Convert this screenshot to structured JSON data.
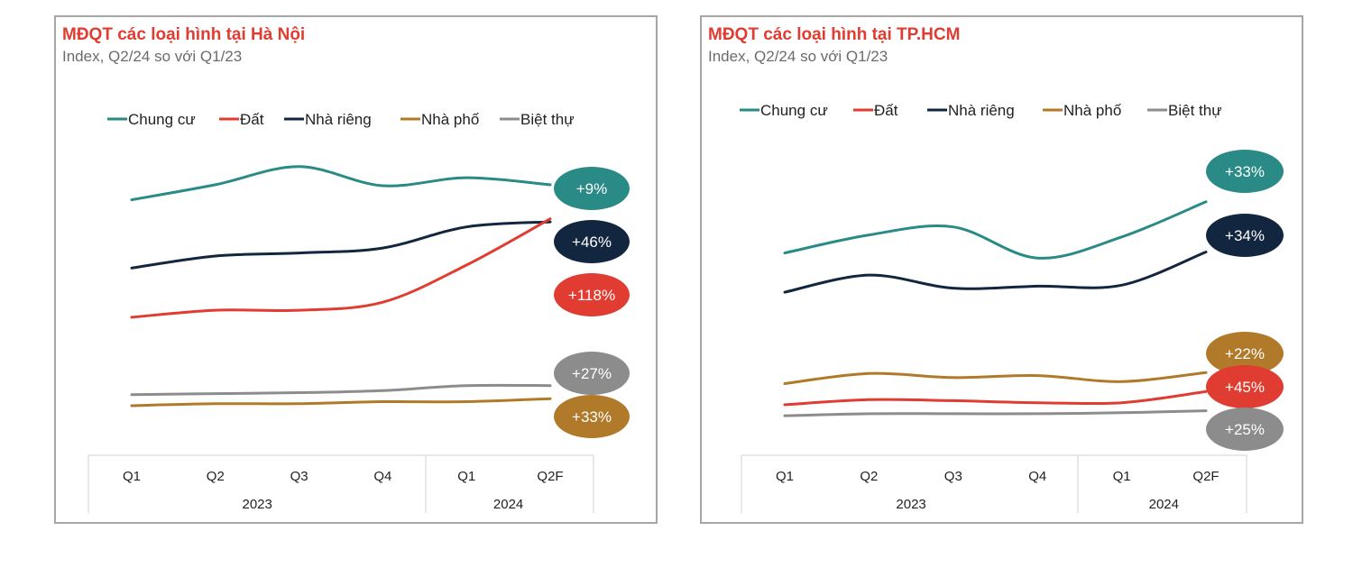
{
  "charts": [
    {
      "title": "MĐQT các loại hình tại Hà Nội",
      "subtitle": "Index, Q2/24 so với Q1/23"
    },
    {
      "title": "MĐQT các loại hình tại TP.HCM",
      "subtitle": "Index, Q2/24 so với Q1/23"
    }
  ],
  "colors": {
    "Chung cư": "#2a8a86",
    "Đất": "#e03c31",
    "Nhà riêng": "#13263f",
    "Nhà phố": "#b07a2a",
    "Biệt thự": "#8c8c8c"
  },
  "chart_data": [
    {
      "type": "line",
      "title": "MĐQT các loại hình tại Hà Nội",
      "subtitle": "Index, Q2/24 so với Q1/23",
      "categories": [
        "Q1",
        "Q2",
        "Q3",
        "Q4",
        "Q1",
        "Q2F"
      ],
      "category_groups": [
        {
          "label": "2023",
          "span": 4
        },
        {
          "label": "2024",
          "span": 2
        }
      ],
      "legend": [
        "Chung cư",
        "Đất",
        "Nhà riêng",
        "Nhà phố",
        "Biệt thự"
      ],
      "ylim": [
        100,
        380
      ],
      "series": [
        {
          "name": "Chung cư",
          "values": [
            340,
            355,
            373,
            354,
            362,
            355
          ],
          "label": "+9%"
        },
        {
          "name": "Nhà riêng",
          "values": [
            272,
            284,
            287,
            292,
            313,
            318
          ],
          "label": "+46%"
        },
        {
          "name": "Đất",
          "values": [
            223,
            230,
            230,
            238,
            275,
            321
          ],
          "label": "+118%"
        },
        {
          "name": "Biệt thự",
          "values": [
            146,
            147,
            148,
            150,
            155,
            155
          ],
          "label": "+27%"
        },
        {
          "name": "Nhà phố",
          "values": [
            135,
            137,
            137,
            139,
            139,
            142
          ],
          "label": "+33%"
        }
      ]
    },
    {
      "type": "line",
      "title": "MĐQT các loại hình tại TP.HCM",
      "subtitle": "Index, Q2/24 so với Q1/23",
      "categories": [
        "Q1",
        "Q2",
        "Q3",
        "Q4",
        "Q1",
        "Q2F"
      ],
      "category_groups": [
        {
          "label": "2023",
          "span": 4
        },
        {
          "label": "2024",
          "span": 2
        }
      ],
      "legend": [
        "Chung cư",
        "Đất",
        "Nhà riêng",
        "Nhà phố",
        "Biệt thự"
      ],
      "ylim": [
        100,
        380
      ],
      "series": [
        {
          "name": "Chung cư",
          "values": [
            287,
            305,
            313,
            282,
            303,
            338
          ],
          "label": "+33%"
        },
        {
          "name": "Nhà riêng",
          "values": [
            248,
            265,
            252,
            254,
            255,
            288
          ],
          "label": "+34%"
        },
        {
          "name": "Nhà phố",
          "values": [
            157,
            167,
            163,
            165,
            159,
            168
          ],
          "label": "+22%"
        },
        {
          "name": "Đất",
          "values": [
            136,
            141,
            140,
            138,
            138,
            149
          ],
          "label": "+45%"
        },
        {
          "name": "Biệt thự",
          "values": [
            125,
            127,
            127,
            127,
            128,
            130
          ],
          "label": "+25%"
        }
      ]
    }
  ]
}
